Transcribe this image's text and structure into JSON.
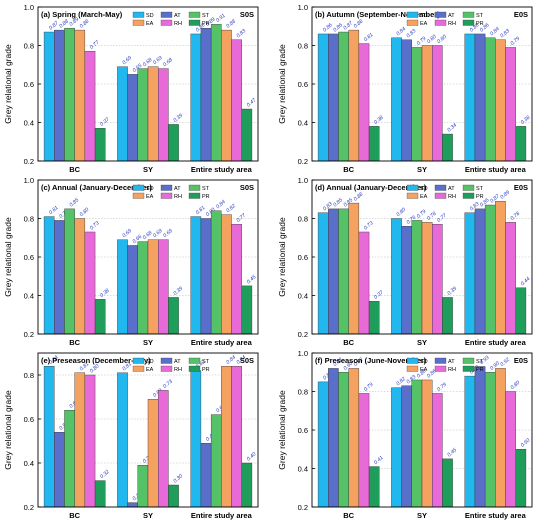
{
  "colors": {
    "SD": "#21b7ef",
    "AT": "#5a6fc9",
    "ST": "#56c268",
    "EA": "#f5a15f",
    "RH": "#e86ad9",
    "PR": "#1e9e5a",
    "value_label": "#2d3fc4",
    "grid": "#b8b8b8"
  },
  "chart_data": [
    {
      "type": "bar",
      "panel_title": "(a) Spring (March-May)",
      "tag": "S0S",
      "ylabel": "Grey relational grade",
      "ylim": [
        0.2,
        1.0
      ],
      "yticks": [
        "0.2",
        "0.4",
        "0.6",
        "0.8",
        "1.0"
      ],
      "grid": true,
      "legend": "top-center",
      "categories": [
        "BC",
        "SY",
        "Entire study area"
      ],
      "series": [
        {
          "name": "SD",
          "values": [
            0.87,
            0.69,
            0.86
          ]
        },
        {
          "name": "AT",
          "values": [
            0.88,
            0.65,
            0.89
          ]
        },
        {
          "name": "ST",
          "values": [
            0.89,
            0.68,
            0.91
          ]
        },
        {
          "name": "EA",
          "values": [
            0.88,
            0.69,
            0.88
          ]
        },
        {
          "name": "RH",
          "values": [
            0.77,
            0.68,
            0.83
          ]
        },
        {
          "name": "PR",
          "values": [
            0.37,
            0.39,
            0.47
          ]
        }
      ]
    },
    {
      "type": "bar",
      "panel_title": "(b) Autumn (September-November)",
      "tag": "E0S",
      "ylabel": "Grey relational grade",
      "ylim": [
        0.2,
        1.0
      ],
      "yticks": [
        "0.2",
        "0.4",
        "0.6",
        "0.8",
        "1.0"
      ],
      "grid": true,
      "legend": "top-center",
      "categories": [
        "BC",
        "SY",
        "Entire study area"
      ],
      "series": [
        {
          "name": "SD",
          "values": [
            0.86,
            0.84,
            0.86
          ]
        },
        {
          "name": "AT",
          "values": [
            0.86,
            0.83,
            0.86
          ]
        },
        {
          "name": "ST",
          "values": [
            0.87,
            0.79,
            0.84
          ]
        },
        {
          "name": "EA",
          "values": [
            0.88,
            0.8,
            0.83
          ]
        },
        {
          "name": "RH",
          "values": [
            0.81,
            0.8,
            0.79
          ]
        },
        {
          "name": "PR",
          "values": [
            0.38,
            0.34,
            0.38
          ]
        }
      ]
    },
    {
      "type": "bar",
      "panel_title": "(c) Annual (January-December)",
      "tag": "S0S",
      "ylabel": "Grey relational grade",
      "ylim": [
        0.2,
        1.0
      ],
      "yticks": [
        "0.2",
        "0.4",
        "0.6",
        "0.8",
        "1.0"
      ],
      "grid": true,
      "legend": "top-center",
      "categories": [
        "BC",
        "SY",
        "Entire study area"
      ],
      "series": [
        {
          "name": "SD",
          "values": [
            0.81,
            0.69,
            0.81
          ]
        },
        {
          "name": "AT",
          "values": [
            0.79,
            0.66,
            0.8
          ]
        },
        {
          "name": "ST",
          "values": [
            0.85,
            0.68,
            0.84
          ]
        },
        {
          "name": "EA",
          "values": [
            0.8,
            0.69,
            0.82
          ]
        },
        {
          "name": "RH",
          "values": [
            0.73,
            0.69,
            0.77
          ]
        },
        {
          "name": "PR",
          "values": [
            0.38,
            0.39,
            0.45
          ]
        }
      ]
    },
    {
      "type": "bar",
      "panel_title": "(d) Annual (January-December)",
      "tag": "E0S",
      "ylabel": "Grey relational grade",
      "ylim": [
        0.2,
        1.0
      ],
      "yticks": [
        "0.2",
        "0.4",
        "0.6",
        "0.8",
        "1.0"
      ],
      "grid": true,
      "legend": "top-center",
      "categories": [
        "BC",
        "SY",
        "Entire study area"
      ],
      "series": [
        {
          "name": "SD",
          "values": [
            0.83,
            0.8,
            0.83
          ]
        },
        {
          "name": "AT",
          "values": [
            0.85,
            0.76,
            0.85
          ]
        },
        {
          "name": "ST",
          "values": [
            0.85,
            0.79,
            0.87
          ]
        },
        {
          "name": "EA",
          "values": [
            0.88,
            0.78,
            0.89
          ]
        },
        {
          "name": "RH",
          "values": [
            0.73,
            0.77,
            0.78
          ]
        },
        {
          "name": "PR",
          "values": [
            0.37,
            0.39,
            0.44
          ]
        }
      ]
    },
    {
      "type": "bar",
      "panel_title": "(e) Preseason (December-May)",
      "tag": "S0S",
      "ylabel": "Grey relational grade",
      "ylim": [
        0.2,
        0.9
      ],
      "yticks": [
        "0.2",
        "0.4",
        "0.6",
        "0.8"
      ],
      "grid": true,
      "legend": "top-center",
      "categories": [
        "BC",
        "SY",
        "Entire study area"
      ],
      "series": [
        {
          "name": "SD",
          "values": [
            0.84,
            0.81,
            0.82
          ]
        },
        {
          "name": "AT",
          "values": [
            0.54,
            0.22,
            0.49
          ]
        },
        {
          "name": "ST",
          "values": [
            0.64,
            0.39,
            0.62
          ]
        },
        {
          "name": "EA",
          "values": [
            0.81,
            0.69,
            0.84
          ]
        },
        {
          "name": "RH",
          "values": [
            0.8,
            0.73,
            0.84
          ]
        },
        {
          "name": "PR",
          "values": [
            0.32,
            0.3,
            0.4
          ]
        }
      ]
    },
    {
      "type": "bar",
      "panel_title": "(f) Preseason (June-November)",
      "tag": "E0S",
      "ylabel": "Grey relational grade",
      "ylim": [
        0.2,
        1.0
      ],
      "yticks": [
        "0.2",
        "0.4",
        "0.6",
        "0.8",
        "1.0"
      ],
      "grid": true,
      "legend": "top-center",
      "categories": [
        "BC",
        "SY",
        "Entire study area"
      ],
      "series": [
        {
          "name": "SD",
          "values": [
            0.85,
            0.82,
            0.88
          ]
        },
        {
          "name": "AT",
          "values": [
            0.92,
            0.83,
            0.93
          ]
        },
        {
          "name": "ST",
          "values": [
            0.9,
            0.86,
            0.9
          ]
        },
        {
          "name": "EA",
          "values": [
            0.92,
            0.86,
            0.92
          ]
        },
        {
          "name": "RH",
          "values": [
            0.79,
            0.79,
            0.8
          ]
        },
        {
          "name": "PR",
          "values": [
            0.41,
            0.45,
            0.5
          ]
        }
      ]
    }
  ]
}
